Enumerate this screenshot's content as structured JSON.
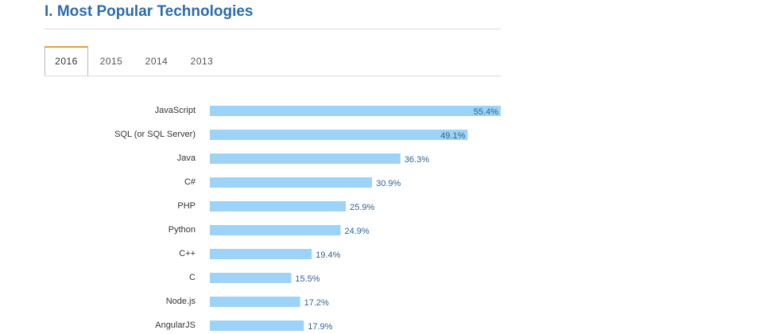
{
  "section": {
    "title": "I. Most Popular Technologies"
  },
  "tabs": [
    {
      "label": "2016",
      "active": true
    },
    {
      "label": "2015",
      "active": false
    },
    {
      "label": "2014",
      "active": false
    },
    {
      "label": "2013",
      "active": false
    }
  ],
  "colors": {
    "title": "#2a6cb0",
    "bar": "#9dd3f7",
    "value_text": "#2f6591",
    "tab_accent": "#e2a13c"
  },
  "chart_data": {
    "type": "bar",
    "orientation": "horizontal",
    "title": "",
    "xlabel": "",
    "ylabel": "",
    "categories": [
      "JavaScript",
      "SQL (or SQL Server)",
      "Java",
      "C#",
      "PHP",
      "Python",
      "C++",
      "C",
      "Node.js",
      "AngularJS"
    ],
    "values": [
      55.4,
      49.1,
      36.3,
      30.9,
      25.9,
      24.9,
      19.4,
      15.5,
      17.2,
      17.9
    ],
    "value_labels": [
      "55.4%",
      "49.1%",
      "36.3%",
      "30.9%",
      "25.9%",
      "24.9%",
      "19.4%",
      "15.5%",
      "17.2%",
      "17.9%"
    ],
    "xlim": [
      0,
      55.4
    ],
    "grid": false,
    "legend": "none"
  }
}
